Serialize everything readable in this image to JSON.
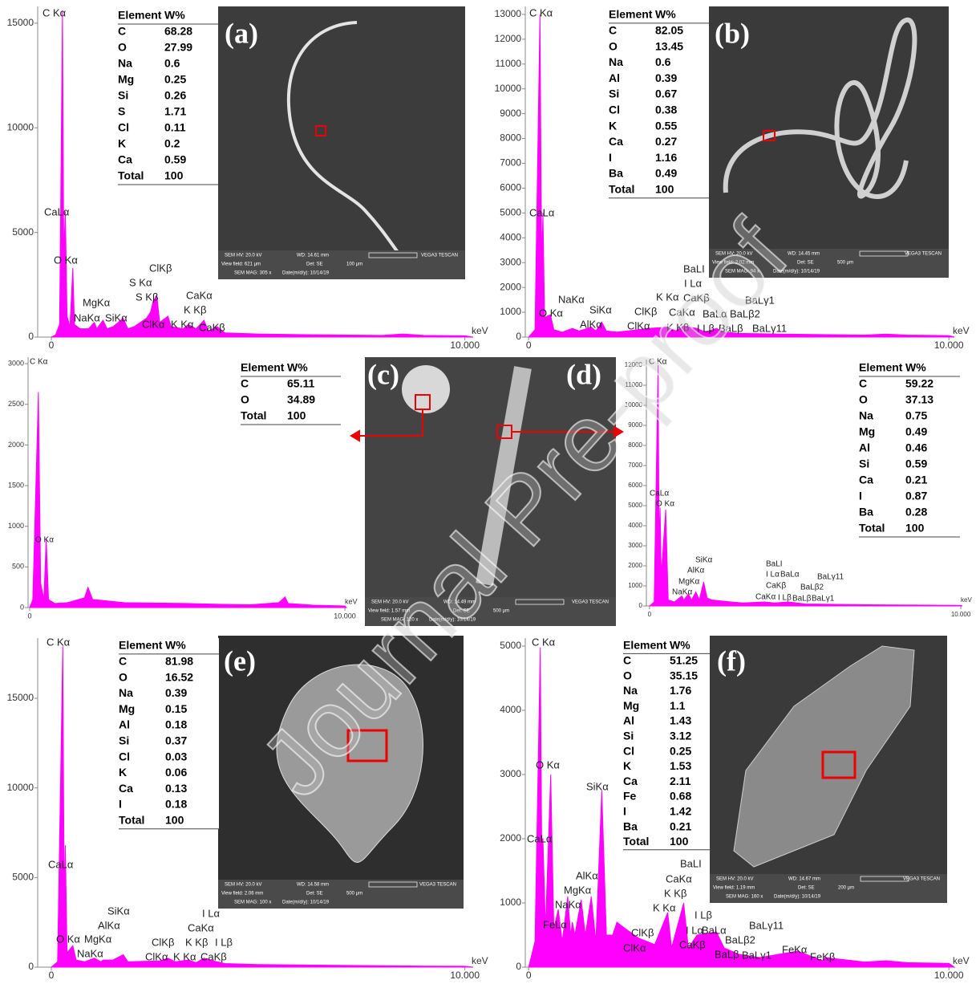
{
  "watermark": "Journal Pre-proof",
  "chart_data": [
    {
      "type": "area",
      "color": "#ff00ff",
      "xlabel": "keV",
      "xlim": [
        -0.33,
        10.2
      ],
      "xticks": [
        0,
        {
          "value": 10,
          "label": "10.000"
        }
      ],
      "ylim": [
        0,
        15800
      ],
      "yticks": [
        0,
        5000,
        10000,
        15000
      ],
      "x": [
        0,
        0.1,
        0.2,
        0.27,
        0.3,
        0.34,
        0.38,
        0.45,
        0.52,
        0.56,
        0.7,
        0.9,
        1.04,
        1.1,
        1.25,
        1.35,
        1.49,
        1.74,
        1.85,
        2.0,
        2.3,
        2.4,
        2.46,
        2.55,
        2.62,
        2.82,
        2.9,
        3.19,
        3.31,
        3.5,
        3.69,
        3.8,
        4.01,
        4.2,
        5,
        6,
        7,
        8,
        8.5,
        9,
        10,
        10.2
      ],
      "values": [
        0,
        100,
        600,
        15600,
        4000,
        6000,
        1000,
        500,
        3300,
        600,
        400,
        400,
        700,
        400,
        800,
        400,
        500,
        900,
        400,
        500,
        900,
        1200,
        1700,
        2000,
        700,
        1000,
        500,
        400,
        600,
        400,
        800,
        300,
        500,
        200,
        150,
        120,
        100,
        80,
        150,
        80,
        60,
        0
      ],
      "annotations": [
        "C Kα",
        "CaLα",
        "O Kα",
        "ClKβ",
        "S Kα",
        "S Kβ",
        "MgKα",
        "NaKα",
        "SiKα",
        "ClKα",
        "K Kα",
        "CaKα",
        "K Kβ",
        "CaKβ"
      ],
      "table": {
        "header": [
          "Element",
          "W%"
        ],
        "rows": [
          [
            "C",
            68.28
          ],
          [
            "O",
            27.99
          ],
          [
            "Na",
            0.6
          ],
          [
            "Mg",
            0.25
          ],
          [
            "Si",
            0.26
          ],
          [
            "S",
            1.71
          ],
          [
            "Cl",
            0.11
          ],
          [
            "K",
            0.2
          ],
          [
            "Ca",
            0.59
          ],
          [
            "Total",
            100
          ]
        ]
      }
    },
    {
      "type": "area",
      "color": "#ff00ff",
      "xlabel": "keV",
      "xlim": [
        -0.08,
        10.13
      ],
      "xticks": [
        0,
        {
          "value": 10,
          "label": "10.000"
        }
      ],
      "ylim": [
        0,
        13320
      ],
      "yticks": [
        0,
        1000,
        2000,
        3000,
        4000,
        5000,
        6000,
        7000,
        8000,
        9000,
        10000,
        11000,
        12000,
        13000
      ],
      "x": [
        0,
        0.15,
        0.27,
        0.31,
        0.34,
        0.38,
        0.52,
        0.6,
        0.8,
        1.04,
        1.2,
        1.49,
        1.6,
        1.74,
        1.85,
        2.1,
        2.62,
        2.82,
        3.31,
        3.5,
        3.69,
        4.01,
        4.2,
        4.47,
        4.65,
        5,
        6,
        7,
        8,
        8.5,
        9,
        10,
        10.13
      ],
      "values": [
        0,
        300,
        13000,
        3000,
        5000,
        800,
        900,
        300,
        200,
        350,
        250,
        400,
        250,
        600,
        250,
        200,
        300,
        350,
        400,
        250,
        450,
        350,
        200,
        350,
        200,
        150,
        120,
        100,
        80,
        120,
        80,
        60,
        0
      ],
      "annotations": [
        "C Kα",
        "CaLα",
        "O Kα",
        "NaKα",
        "AlKα",
        "SiKα",
        "ClKβ",
        "ClKα",
        "K Kα",
        "CaKβ",
        "CaKα",
        "K Kβ",
        "BaLI",
        "I Lα",
        "BaLα",
        "BaLβ2",
        "BaLγ1",
        "I Lβ",
        "BaLβ",
        "BaLγ11"
      ],
      "table": {
        "header": [
          "Element",
          "W%"
        ],
        "rows": [
          [
            "C",
            82.05
          ],
          [
            "O",
            13.45
          ],
          [
            "Na",
            0.6
          ],
          [
            "Al",
            0.39
          ],
          [
            "Si",
            0.67
          ],
          [
            "Cl",
            0.38
          ],
          [
            "K",
            0.55
          ],
          [
            "Ca",
            0.27
          ],
          [
            "I",
            1.16
          ],
          [
            "Ba",
            0.49
          ],
          [
            "Total",
            100
          ]
        ]
      }
    },
    {
      "type": "area",
      "color": "#ff00ff",
      "xlabel": "keV",
      "xlim": [
        -0.05,
        10.05
      ],
      "xticks": [
        0,
        {
          "value": 10,
          "label": "10.000"
        }
      ],
      "ylim": [
        0,
        3080
      ],
      "yticks": [
        0,
        500,
        1000,
        1500,
        2000,
        2500,
        3000
      ],
      "x": [
        0,
        0.1,
        0.277,
        0.35,
        0.45,
        0.525,
        0.6,
        0.8,
        1.2,
        1.74,
        1.85,
        2.0,
        3,
        5,
        6,
        7,
        7.9,
        8.1,
        8.2,
        9,
        10,
        10.05
      ],
      "values": [
        0,
        100,
        2650,
        300,
        100,
        850,
        100,
        50,
        60,
        120,
        250,
        100,
        60,
        50,
        40,
        35,
        60,
        130,
        50,
        30,
        20,
        0
      ],
      "annotations": [
        "C Kα",
        "O Kα"
      ],
      "table": {
        "header": [
          "Element",
          "W%"
        ],
        "rows": [
          [
            "C",
            65.11
          ],
          [
            "O",
            34.89
          ],
          [
            "Total",
            100
          ]
        ]
      }
    },
    {
      "type": "area",
      "color": "#ff00ff",
      "xlabel": "keV",
      "xlim": [
        -0.1,
        10.05
      ],
      "xticks": [
        0,
        {
          "value": 10,
          "label": "10.000"
        }
      ],
      "ylim": [
        0,
        12280
      ],
      "yticks": [
        0,
        1000,
        2000,
        3000,
        4000,
        5000,
        6000,
        7000,
        8000,
        9000,
        10000,
        11000,
        12000
      ],
      "x": [
        0,
        0.15,
        0.277,
        0.31,
        0.34,
        0.38,
        0.52,
        0.6,
        0.8,
        1.04,
        1.1,
        1.25,
        1.35,
        1.49,
        1.6,
        1.74,
        1.85,
        2.0,
        2.62,
        3,
        3.69,
        4.0,
        4.47,
        5,
        6,
        7,
        8,
        9,
        10,
        10.05
      ],
      "values": [
        0,
        200,
        12000,
        3000,
        4900,
        1500,
        4800,
        300,
        200,
        500,
        300,
        600,
        300,
        700,
        300,
        1200,
        400,
        300,
        200,
        150,
        200,
        150,
        200,
        100,
        80,
        60,
        50,
        40,
        30,
        0
      ],
      "annotations": [
        "C Kα",
        "CaLα",
        "O Kα",
        "SiKα",
        "AlKα",
        "MgKα",
        "NaKα",
        "BaLI",
        "I Lα",
        "BaLα",
        "CaKβ",
        "BaLβ2",
        "BaLγ11",
        "CaKα",
        "I Lβ",
        "BaLβ",
        "BaLγ1"
      ],
      "table": {
        "header": [
          "Element",
          "W%"
        ],
        "rows": [
          [
            "C",
            59.22
          ],
          [
            "O",
            37.13
          ],
          [
            "Na",
            0.75
          ],
          [
            "Mg",
            0.49
          ],
          [
            "Al",
            0.46
          ],
          [
            "Si",
            0.59
          ],
          [
            "Ca",
            0.21
          ],
          [
            "I",
            0.87
          ],
          [
            "Ba",
            0.28
          ],
          [
            "Total",
            100
          ]
        ]
      }
    },
    {
      "type": "area",
      "color": "#ff00ff",
      "xlabel": "keV",
      "xlim": [
        -0.33,
        10.2
      ],
      "xticks": [
        0,
        {
          "value": 10,
          "label": "10.000"
        }
      ],
      "ylim": [
        0,
        18360
      ],
      "yticks": [
        0,
        5000,
        10000,
        15000
      ],
      "x": [
        0,
        0.15,
        0.277,
        0.31,
        0.34,
        0.38,
        0.52,
        0.6,
        0.8,
        1.04,
        1.2,
        1.25,
        1.49,
        1.74,
        1.85,
        2.62,
        2.82,
        3.0,
        3.31,
        3.5,
        3.69,
        4.0,
        4.2,
        5,
        6,
        7,
        8,
        9,
        10,
        10.2
      ],
      "values": [
        0,
        300,
        17900,
        4000,
        6800,
        800,
        1200,
        400,
        300,
        500,
        300,
        400,
        400,
        700,
        300,
        350,
        500,
        300,
        400,
        250,
        500,
        300,
        200,
        150,
        120,
        100,
        80,
        60,
        50,
        0
      ],
      "annotations": [
        "C Kα",
        "CaLα",
        "SiKα",
        "AlKα",
        "MgKα",
        "O Kα",
        "NaKα",
        "I Lα",
        "CaKα",
        "ClKβ",
        "K Kβ",
        "I Lβ",
        "ClKα",
        "K Kα",
        "CaKβ"
      ],
      "table": {
        "header": [
          "Element",
          "W%"
        ],
        "rows": [
          [
            "C",
            81.98
          ],
          [
            "O",
            16.52
          ],
          [
            "Na",
            0.39
          ],
          [
            "Mg",
            0.15
          ],
          [
            "Al",
            0.18
          ],
          [
            "Si",
            0.37
          ],
          [
            "Cl",
            0.03
          ],
          [
            "K",
            0.06
          ],
          [
            "Ca",
            0.13
          ],
          [
            "I",
            0.18
          ],
          [
            "Total",
            100
          ]
        ]
      }
    },
    {
      "type": "area",
      "color": "#ff00ff",
      "xlabel": "keV",
      "xlim": [
        -0.08,
        10.13
      ],
      "xticks": [
        0,
        {
          "value": 10,
          "label": "10.000"
        }
      ],
      "ylim": [
        0,
        5125
      ],
      "yticks": [
        0,
        1000,
        2000,
        3000,
        4000,
        5000
      ],
      "x": [
        0,
        0.15,
        0.277,
        0.31,
        0.34,
        0.4,
        0.525,
        0.6,
        0.705,
        0.8,
        0.93,
        1.0,
        1.04,
        1.1,
        1.25,
        1.35,
        1.49,
        1.6,
        1.74,
        1.85,
        2.0,
        2.1,
        2.3,
        2.62,
        2.82,
        3.0,
        3.31,
        3.4,
        3.69,
        3.8,
        4.01,
        4.47,
        4.65,
        5,
        5.5,
        6.4,
        7,
        7.06,
        8,
        8.5,
        9,
        10,
        10.13
      ],
      "values": [
        0,
        400,
        4980,
        2000,
        2000,
        600,
        3000,
        600,
        900,
        400,
        1100,
        500,
        700,
        500,
        1050,
        500,
        1100,
        400,
        2750,
        500,
        500,
        700,
        600,
        450,
        400,
        350,
        850,
        300,
        1000,
        300,
        500,
        550,
        300,
        200,
        150,
        250,
        100,
        150,
        80,
        100,
        70,
        60,
        0
      ],
      "annotations": [
        "C Kα",
        "O Kα",
        "SiKα",
        "CaLα",
        "AlKα",
        "MgKα",
        "NaKα",
        "FeLα",
        "BaLI",
        "CaKα",
        "K Kβ",
        "K Kα",
        "I Lβ",
        "I Lα",
        "BaLα",
        "BaLγ11",
        "ClKβ",
        "ClKα",
        "CaKβ",
        "BaLβ2",
        "BaLβ",
        "BaLγ1",
        "FeKα",
        "FeKβ"
      ],
      "table": {
        "header": [
          "Element",
          "W%"
        ],
        "rows": [
          [
            "C",
            51.25
          ],
          [
            "O",
            35.15
          ],
          [
            "Na",
            1.76
          ],
          [
            "Mg",
            1.1
          ],
          [
            "Al",
            1.43
          ],
          [
            "Si",
            3.12
          ],
          [
            "Cl",
            0.25
          ],
          [
            "K",
            1.53
          ],
          [
            "Ca",
            2.11
          ],
          [
            "Fe",
            0.68
          ],
          [
            "I",
            1.42
          ],
          [
            "Ba",
            0.21
          ],
          [
            "Total",
            100
          ]
        ]
      }
    }
  ],
  "images": [
    {
      "labels": [
        "(a)"
      ],
      "info": [
        "SEM HV: 20.0 kV",
        "WD: 14.61 mm",
        "View field: 621 µm",
        "Det: SE",
        "100 µm",
        "SEM MAG: 305 x",
        "Date(m/d/y): 10/14/19",
        "VEGA3 TESCAN"
      ]
    },
    {
      "labels": [
        "(b)"
      ],
      "info": [
        "SEM HV: 20.0 kV",
        "WD: 14.45 mm",
        "View field: 2.02 mm",
        "Det: SE",
        "500 µm",
        "SEM MAG: 94 x",
        "Date(m/d/y): 10/14/19",
        "VEGA3 TESCAN"
      ]
    },
    {
      "labels": [
        "(c)",
        "(d)"
      ],
      "info": [
        "SEM HV: 20.0 kV",
        "WD: 14.49 mm",
        "View field: 1.57 mm",
        "Det: SE",
        "500 µm",
        "SEM MAG: 120 x",
        "Date(m/d/y): 10/14/19",
        "VEGA3 TESCAN"
      ]
    },
    {
      "labels": [
        "(e)"
      ],
      "info": [
        "SEM HV: 20.0 kV",
        "WD: 14.58 mm",
        "View field: 2.06 mm",
        "Det: SE",
        "500 µm",
        "SEM MAG: 100 x",
        "Date(m/d/y): 10/14/19",
        "VEGA3 TESCAN"
      ]
    },
    {
      "labels": [
        "(f)"
      ],
      "info": [
        "SEM HV: 20.0 kV",
        "WD: 14.67 mm",
        "View field: 1.19 mm",
        "Det: SE",
        "200 µm",
        "SEM MAG: 160 x",
        "Date(m/d/y): 10/14/19",
        "VEGA3 TESCAN"
      ]
    }
  ]
}
